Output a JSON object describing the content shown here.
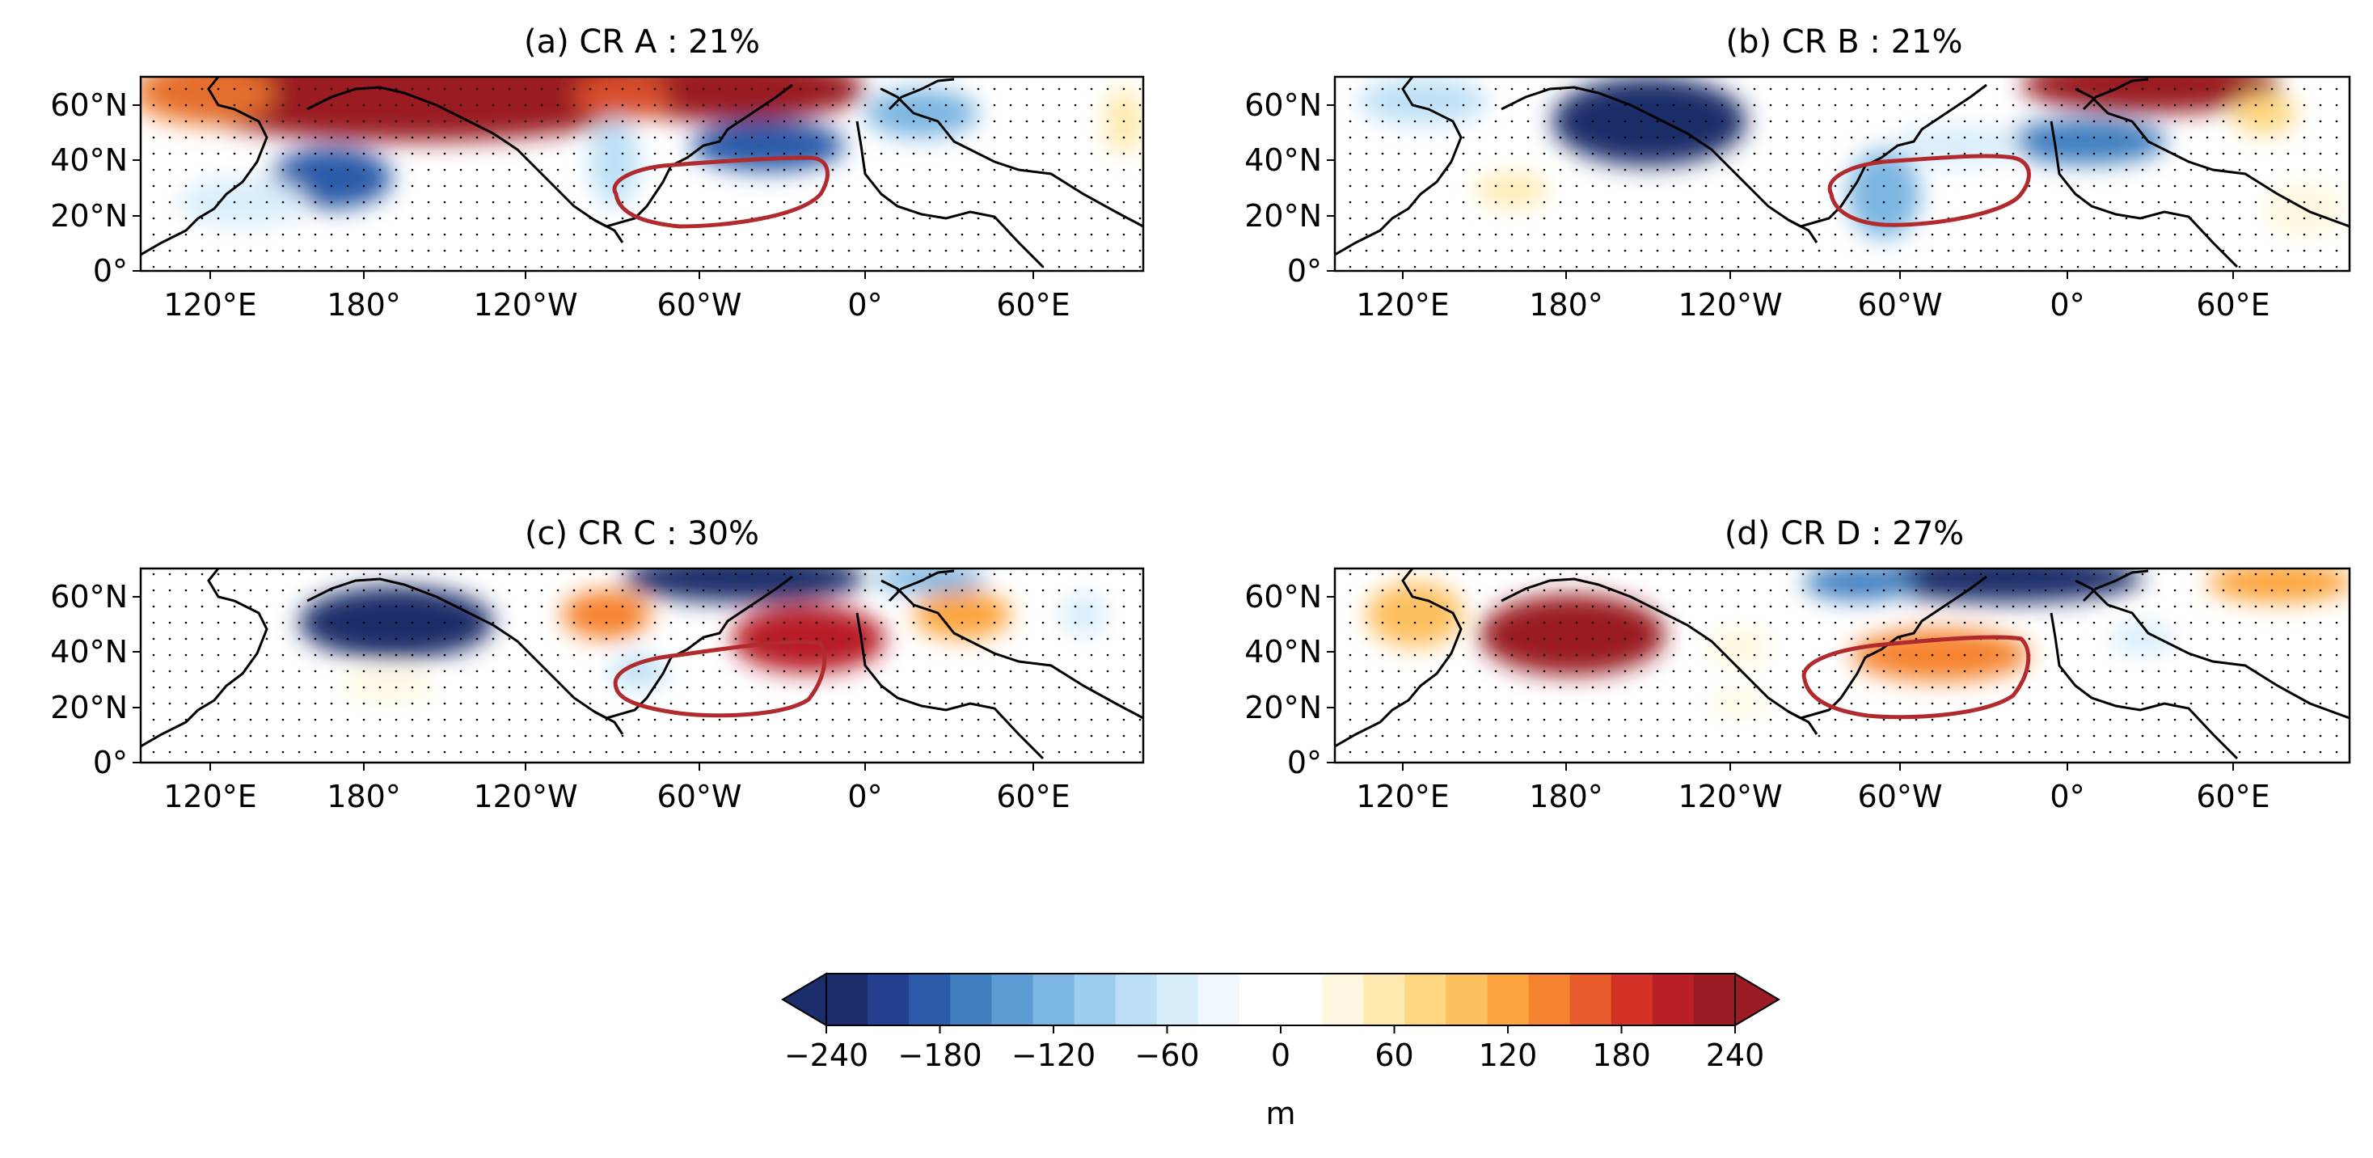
{
  "panels": [
    {
      "title": "(a) CR A : 21%"
    },
    {
      "title": "(b) CR B : 21%"
    },
    {
      "title": "(c) CR C : 30%"
    },
    {
      "title": "(d) CR D : 27%"
    }
  ],
  "axes": {
    "x_ticks": [
      "120°E",
      "180°",
      "120°W",
      "60°W",
      "0°",
      "60°E"
    ],
    "y_ticks": [
      "60°N",
      "40°N",
      "20°N",
      "0°"
    ]
  },
  "colorbar": {
    "ticks": [
      "−240",
      "−180",
      "−120",
      "−60",
      "0",
      "60",
      "120",
      "180",
      "240"
    ],
    "label": "m",
    "colors": [
      "#1b2d6b",
      "#253f8f",
      "#2c5ba9",
      "#3f7fc0",
      "#5a9cd3",
      "#7cb6e2",
      "#9dcdee",
      "#bde0f6",
      "#d9eefb",
      "#f0f8fe",
      "#ffffff",
      "#ffffff",
      "#fff8e0",
      "#ffeab0",
      "#fed781",
      "#fdc05e",
      "#fca53e",
      "#f6832f",
      "#e85c2b",
      "#d43226",
      "#b81f26",
      "#9a1b23"
    ]
  }
}
